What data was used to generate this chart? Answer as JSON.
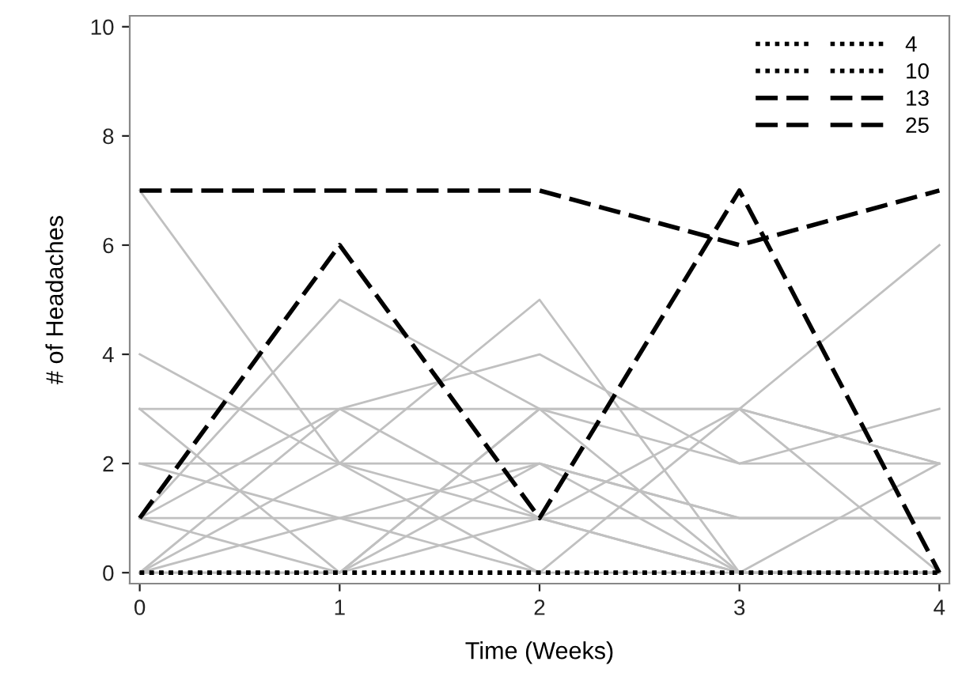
{
  "chart_data": {
    "type": "line",
    "xlabel": "Time (Weeks)",
    "ylabel": "# of Headaches",
    "x": [
      0,
      1,
      2,
      3,
      4
    ],
    "xlim": [
      -0.05,
      4.05
    ],
    "xticks": [
      0,
      1,
      2,
      3,
      4
    ],
    "ylim": [
      -0.2,
      10.2
    ],
    "yticks": [
      0,
      2,
      4,
      6,
      8,
      10
    ],
    "grid": false,
    "legend": "top right",
    "marker": "none",
    "series": [
      {
        "color": "#c0c0c0",
        "line_style": "solid",
        "values": [
          7,
          2,
          0,
          0,
          0
        ]
      },
      {
        "color": "#c0c0c0",
        "line_style": "solid",
        "values": [
          4,
          2,
          1,
          0,
          0
        ]
      },
      {
        "color": "#c0c0c0",
        "line_style": "solid",
        "values": [
          3,
          3,
          3,
          3,
          2
        ]
      },
      {
        "color": "#c0c0c0",
        "line_style": "solid",
        "values": [
          3,
          0,
          3,
          2,
          3
        ]
      },
      {
        "color": "#c0c0c0",
        "line_style": "solid",
        "values": [
          2,
          2,
          2,
          1,
          1
        ]
      },
      {
        "color": "#c0c0c0",
        "line_style": "solid",
        "values": [
          2,
          1,
          0,
          3,
          2
        ]
      },
      {
        "color": "#c0c0c0",
        "line_style": "solid",
        "values": [
          1,
          1,
          1,
          1,
          1
        ]
      },
      {
        "color": "#c0c0c0",
        "line_style": "solid",
        "values": [
          1,
          5,
          3,
          0,
          0
        ]
      },
      {
        "color": "#c0c0c0",
        "line_style": "solid",
        "values": [
          1,
          3,
          1,
          0,
          2
        ]
      },
      {
        "color": "#c0c0c0",
        "line_style": "solid",
        "values": [
          0,
          3,
          4,
          2,
          2
        ]
      },
      {
        "color": "#c0c0c0",
        "line_style": "solid",
        "values": [
          0,
          2,
          5,
          0,
          0
        ]
      },
      {
        "color": "#c0c0c0",
        "line_style": "solid",
        "values": [
          0,
          0,
          3,
          3,
          6
        ]
      },
      {
        "color": "#c0c0c0",
        "line_style": "solid",
        "values": [
          0,
          1,
          2,
          1,
          1
        ]
      },
      {
        "color": "#c0c0c0",
        "line_style": "solid",
        "values": [
          1,
          0,
          2,
          0,
          0
        ]
      },
      {
        "color": "#c0c0c0",
        "line_style": "solid",
        "values": [
          0,
          0,
          1,
          3,
          0
        ]
      },
      {
        "name": "4",
        "color": "#000000",
        "line_style": "dotted",
        "values": [
          0,
          0,
          0,
          0,
          0
        ]
      },
      {
        "name": "10",
        "color": "#000000",
        "line_style": "dotted",
        "values": [
          0,
          0,
          0,
          0,
          0
        ]
      },
      {
        "name": "13",
        "color": "#000000",
        "line_style": "dashed",
        "values": [
          7,
          7,
          7,
          6,
          7
        ]
      },
      {
        "name": "25",
        "color": "#000000",
        "line_style": "dashed",
        "values": [
          1,
          6,
          1,
          7,
          0
        ]
      }
    ]
  }
}
